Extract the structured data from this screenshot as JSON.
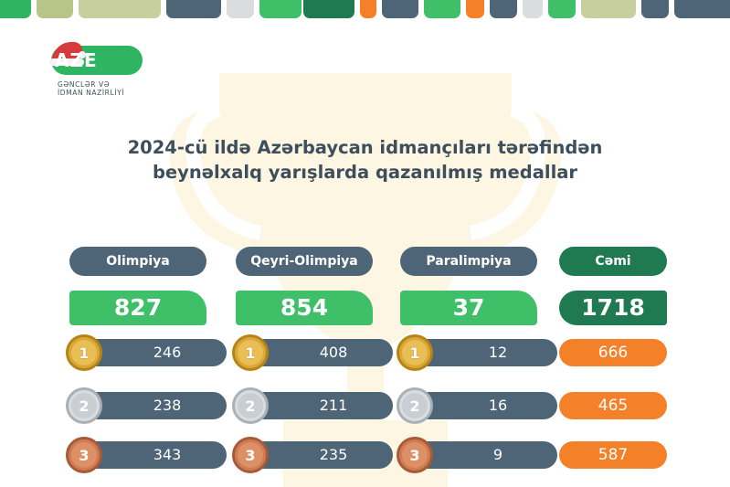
{
  "logo": {
    "text": "AZE",
    "subtitle_line1": "GƏNCLƏR VƏ",
    "subtitle_line2": "İDMAN NAZİRLİYİ"
  },
  "title": {
    "line1": "2024-cü ildə Azərbaycan idmançıları tərəfindən",
    "line2": "beynəlxalq yarışlarda qazanılmış medallar"
  },
  "columns": [
    {
      "header": "Olimpiya",
      "total": "827",
      "gold": "246",
      "silver": "238",
      "bronze": "343"
    },
    {
      "header": "Qeyri-Olimpiya",
      "total": "854",
      "gold": "408",
      "silver": "211",
      "bronze": "235"
    },
    {
      "header": "Paralimpiya",
      "total": "37",
      "gold": "12",
      "silver": "16",
      "bronze": "9"
    }
  ],
  "summary": {
    "header": "Cəmi",
    "total": "1718",
    "gold": "666",
    "silver": "465",
    "bronze": "587"
  },
  "medal_numbers": {
    "gold": "1",
    "silver": "2",
    "bronze": "3"
  },
  "colors": {
    "slate": "#4d6576",
    "green": "#3fbf68",
    "dark_green": "#1f7a52",
    "orange": "#f5802a",
    "gold": "#d8a83a",
    "silver": "#d9dde0",
    "bronze": "#cf7c54"
  }
}
